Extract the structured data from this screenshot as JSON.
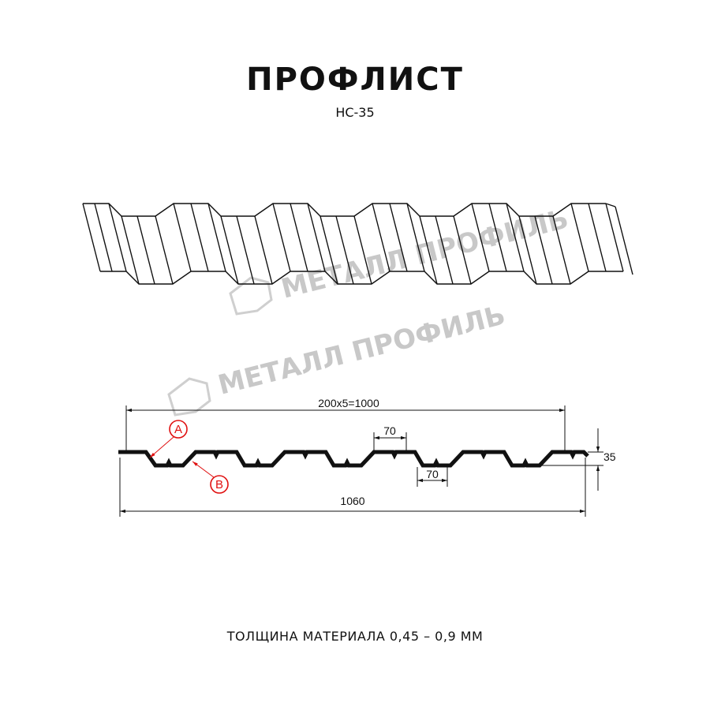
{
  "header": {
    "title": "ПРОФЛИСТ",
    "subtitle": "НС-35"
  },
  "watermark": {
    "text": "МЕТАЛЛ ПРОФИЛЬ",
    "color": "#c8c8c8"
  },
  "drawing": {
    "dimensions": {
      "pitch_total": "200x5=1000",
      "overall_width": "1060",
      "top_flat": "70",
      "bottom_flat": "70",
      "height": "35"
    },
    "callouts": [
      {
        "label": "A"
      },
      {
        "label": "B"
      }
    ],
    "callout_color": "#e01010"
  },
  "footer": {
    "thickness": "ТОЛЩИНА МАТЕРИАЛА 0,45 – 0,9 ММ"
  }
}
